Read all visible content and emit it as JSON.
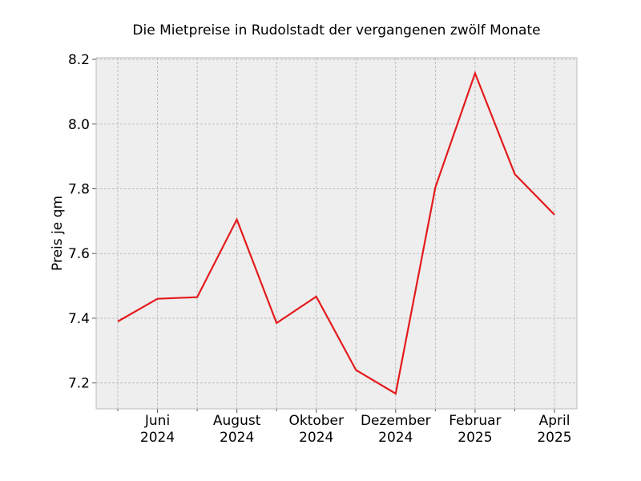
{
  "chart_data": {
    "type": "line",
    "title": "Die Mietpreise in Rudolstadt der vergangenen zwölf Monate",
    "xlabel": "",
    "ylabel": "Preis je qm",
    "x": [
      "2024-05",
      "2024-06",
      "2024-07",
      "2024-08",
      "2024-09",
      "2024-10",
      "2024-11",
      "2024-12",
      "2025-01",
      "2025-02",
      "2025-03",
      "2025-04"
    ],
    "series": [
      {
        "values": [
          7.39,
          7.46,
          7.465,
          7.705,
          7.385,
          7.467,
          7.24,
          7.167,
          7.805,
          8.157,
          7.845,
          7.72
        ],
        "color": "#e41a1c"
      }
    ],
    "ylim": [
      7.12,
      8.205
    ],
    "yticks": [
      7.2,
      7.4,
      7.6,
      7.8,
      8.0,
      8.2
    ],
    "ytick_labels": [
      "7.2",
      "7.4",
      "7.6",
      "7.8",
      "8.0",
      "8.2"
    ],
    "xticks_major": [
      {
        "x": "2024-06",
        "label1": "Juni",
        "label2": "2024"
      },
      {
        "x": "2024-08",
        "label1": "August",
        "label2": "2024"
      },
      {
        "x": "2024-10",
        "label1": "Oktober",
        "label2": "2024"
      },
      {
        "x": "2024-12",
        "label1": "Dezember",
        "label2": "2024"
      },
      {
        "x": "2025-02",
        "label1": "Februar",
        "label2": "2025"
      },
      {
        "x": "2025-04",
        "label1": "April",
        "label2": "2025"
      }
    ],
    "grid": true,
    "background": "#eeeeee"
  }
}
